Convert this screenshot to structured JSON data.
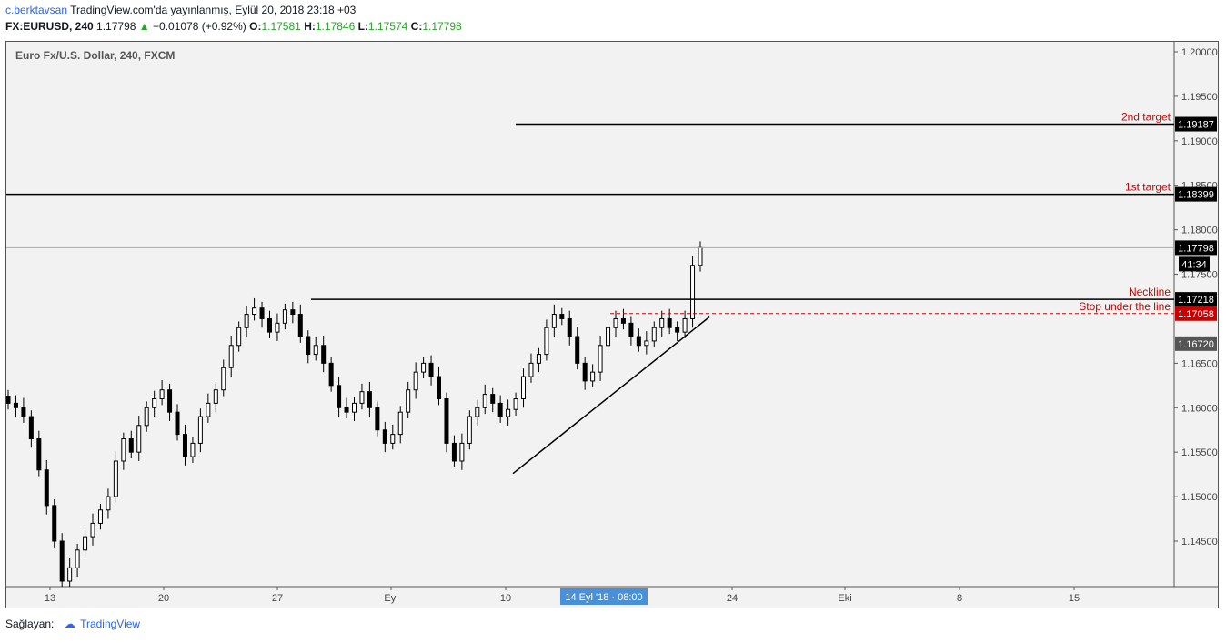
{
  "header": {
    "author": "c.berktavsan",
    "published": "TradingView.com'da yayınlanmış, Eylül 20, 2018 23:18 +03",
    "symbol": "FX:EURUSD, 240",
    "last": "1.17798",
    "change": "+0.01078 (+0.92%)",
    "o_label": "O:",
    "o": "1.17581",
    "h_label": "H:",
    "h": "1.17846",
    "l_label": "L:",
    "l": "1.17574",
    "c_label": "C:",
    "c": "1.17798"
  },
  "colors": {
    "up_arrow": "#22a822",
    "line_red": "#cc0000",
    "bg": "#f2f2f2"
  },
  "chart_data": {
    "type": "candlestick",
    "title": "Euro Fx/U.S. Dollar, 240, FXCM",
    "y_ticks": [
      "1.20000",
      "1.19500",
      "1.19000",
      "1.18500",
      "1.18000",
      "1.17500",
      "1.16500",
      "1.16000",
      "1.15500",
      "1.15000",
      "1.14500"
    ],
    "x_ticks": [
      "13",
      "20",
      "27",
      "Eyl",
      "10",
      "24",
      "Eki",
      "8",
      "15"
    ],
    "ylim": [
      1.14,
      1.2025
    ],
    "crosshair_label": "14 Eyl '18 · 08:00",
    "levels": [
      {
        "name": "2nd target",
        "value": 1.19187,
        "badge": "1.19187"
      },
      {
        "name": "1st target",
        "value": 1.18399,
        "badge": "1.18399"
      },
      {
        "name": "last price",
        "value": 1.17798,
        "badge": "1.17798",
        "countdown": "41:34"
      },
      {
        "name": "Neckline",
        "value": 1.17218,
        "badge": "1.17218"
      },
      {
        "name": "Stop under the line",
        "value": 1.17058,
        "badge": "1.17058"
      },
      {
        "name": "",
        "value": 1.1672,
        "badge": "1.16720"
      }
    ],
    "trendline": {
      "from": {
        "x": "Sep 10",
        "y": 1.1526
      },
      "to": {
        "x": "Sep 20",
        "y": 1.1702
      }
    },
    "closes": [
      1.1605,
      1.16,
      1.159,
      1.1565,
      1.153,
      1.149,
      1.145,
      1.1405,
      1.142,
      1.144,
      1.1455,
      1.147,
      1.1485,
      1.15,
      1.154,
      1.1565,
      1.155,
      1.158,
      1.16,
      1.161,
      1.162,
      1.1595,
      1.157,
      1.1545,
      1.156,
      1.159,
      1.1605,
      1.162,
      1.1645,
      1.167,
      1.169,
      1.1705,
      1.1712,
      1.17,
      1.1685,
      1.1695,
      1.171,
      1.1705,
      1.168,
      1.166,
      1.167,
      1.165,
      1.1625,
      1.16,
      1.1595,
      1.1605,
      1.1618,
      1.16,
      1.1575,
      1.156,
      1.157,
      1.1595,
      1.162,
      1.164,
      1.165,
      1.1635,
      1.161,
      1.156,
      1.154,
      1.156,
      1.159,
      1.16,
      1.1615,
      1.1605,
      1.159,
      1.1598,
      1.161,
      1.1635,
      1.165,
      1.166,
      1.169,
      1.1705,
      1.17,
      1.168,
      1.165,
      1.163,
      1.164,
      1.167,
      1.169,
      1.17,
      1.1695,
      1.168,
      1.167,
      1.1675,
      1.169,
      1.17,
      1.169,
      1.1685,
      1.17,
      1.176,
      1.178
    ]
  },
  "footer": {
    "label": "Sağlayan:",
    "brand": "TradingView"
  }
}
